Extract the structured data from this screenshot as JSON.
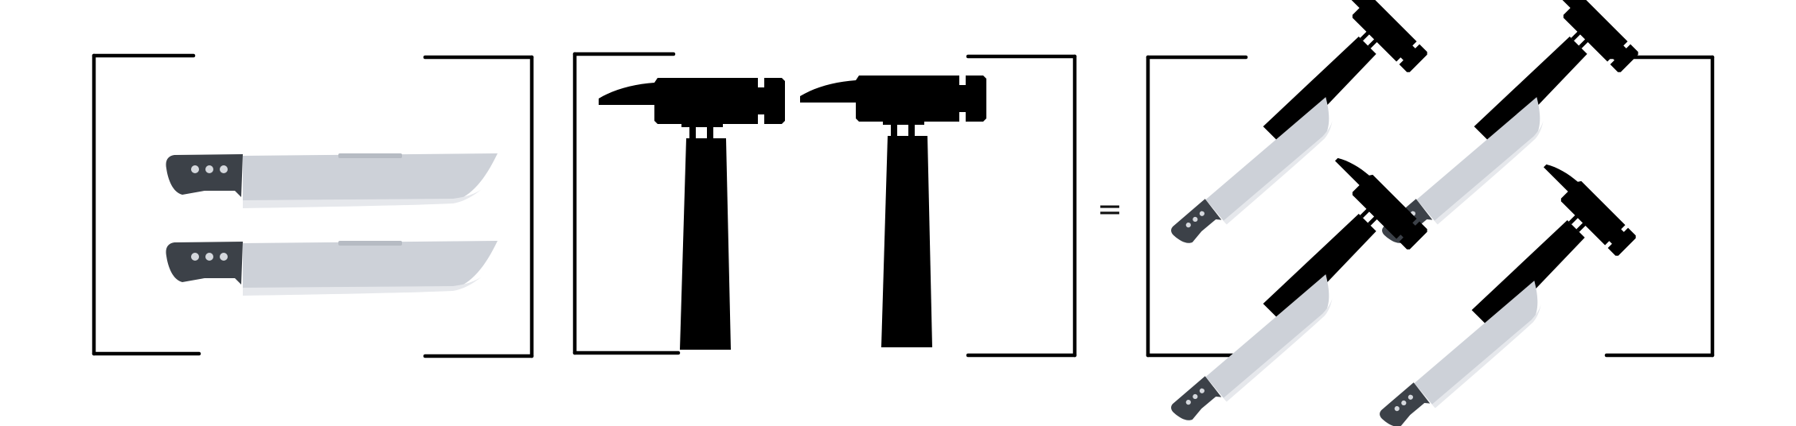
{
  "operator": {
    "symbol": "="
  },
  "matrices": [
    {
      "label": "knife-column-matrix",
      "rows": 2,
      "cols": 1,
      "entry_icon": "knife-icon"
    },
    {
      "label": "hammer-row-matrix",
      "rows": 1,
      "cols": 2,
      "entry_icon": "hammer-icon"
    },
    {
      "label": "result-matrix",
      "rows": 2,
      "cols": 2,
      "entry_icon": "crossed-hammer-knife-icon"
    }
  ],
  "colors": {
    "bracket": "#000000",
    "knife_blade": "#cdd1d8",
    "knife_blade_edge": "#e6e8ec",
    "knife_handle": "#3c4148",
    "knife_rivet": "#d5d8dd",
    "hammer": "#000000"
  }
}
